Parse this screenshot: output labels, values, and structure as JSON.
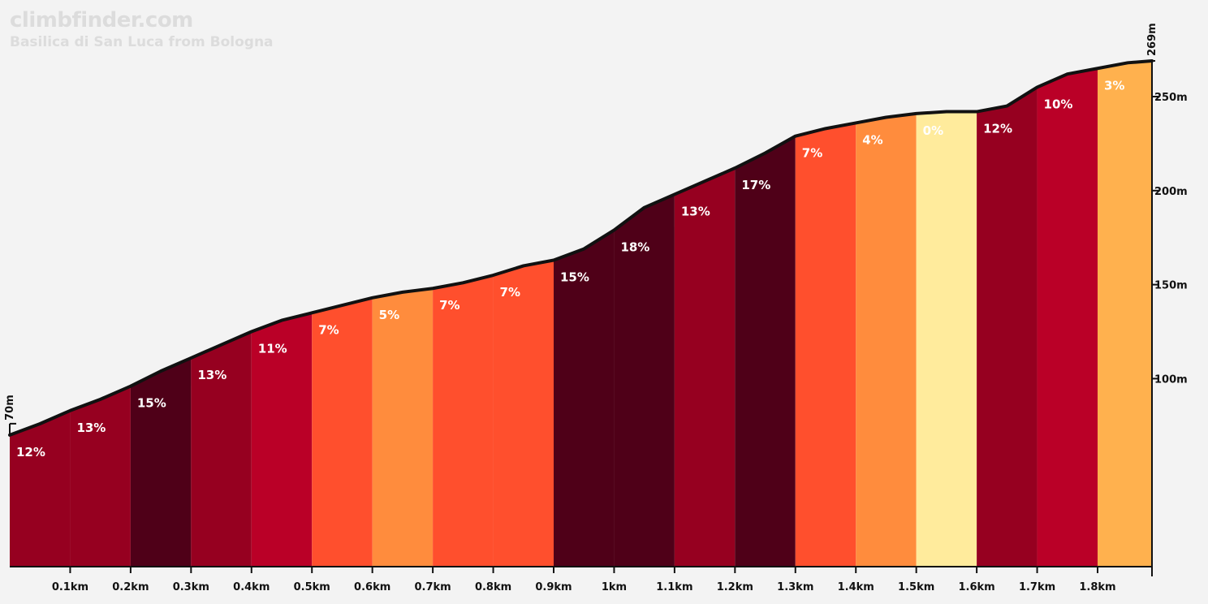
{
  "brand": "climbfinder.com",
  "chart_data": {
    "type": "area",
    "title": "Basilica di San Luca from Bologna",
    "xlabel": "",
    "ylabel": "",
    "x_unit": "km",
    "y_unit": "m",
    "xlim": [
      0,
      1.89
    ],
    "ylim": [
      0,
      269
    ],
    "start_elevation_label": "70m",
    "end_elevation_label": "269m",
    "x_ticks": [
      {
        "value": 0.1,
        "label": "0.1km"
      },
      {
        "value": 0.2,
        "label": "0.2km"
      },
      {
        "value": 0.3,
        "label": "0.3km"
      },
      {
        "value": 0.4,
        "label": "0.4km"
      },
      {
        "value": 0.5,
        "label": "0.5km"
      },
      {
        "value": 0.6,
        "label": "0.6km"
      },
      {
        "value": 0.7,
        "label": "0.7km"
      },
      {
        "value": 0.8,
        "label": "0.8km"
      },
      {
        "value": 0.9,
        "label": "0.9km"
      },
      {
        "value": 1.0,
        "label": "1km"
      },
      {
        "value": 1.1,
        "label": "1.1km"
      },
      {
        "value": 1.2,
        "label": "1.2km"
      },
      {
        "value": 1.3,
        "label": "1.3km"
      },
      {
        "value": 1.4,
        "label": "1.4km"
      },
      {
        "value": 1.5,
        "label": "1.5km"
      },
      {
        "value": 1.6,
        "label": "1.6km"
      },
      {
        "value": 1.7,
        "label": "1.7km"
      },
      {
        "value": 1.8,
        "label": "1.8km"
      }
    ],
    "y_ticks": [
      {
        "value": 100,
        "label": "100m"
      },
      {
        "value": 150,
        "label": "150m"
      },
      {
        "value": 200,
        "label": "200m"
      },
      {
        "value": 250,
        "label": "250m"
      }
    ],
    "profile": [
      {
        "x": 0.0,
        "y": 70
      },
      {
        "x": 0.05,
        "y": 76
      },
      {
        "x": 0.1,
        "y": 83
      },
      {
        "x": 0.15,
        "y": 89
      },
      {
        "x": 0.2,
        "y": 96
      },
      {
        "x": 0.25,
        "y": 104
      },
      {
        "x": 0.3,
        "y": 111
      },
      {
        "x": 0.35,
        "y": 118
      },
      {
        "x": 0.4,
        "y": 125
      },
      {
        "x": 0.45,
        "y": 131
      },
      {
        "x": 0.5,
        "y": 135
      },
      {
        "x": 0.55,
        "y": 139
      },
      {
        "x": 0.6,
        "y": 143
      },
      {
        "x": 0.65,
        "y": 146
      },
      {
        "x": 0.7,
        "y": 148
      },
      {
        "x": 0.75,
        "y": 151
      },
      {
        "x": 0.8,
        "y": 155
      },
      {
        "x": 0.85,
        "y": 160
      },
      {
        "x": 0.9,
        "y": 163
      },
      {
        "x": 0.95,
        "y": 169
      },
      {
        "x": 1.0,
        "y": 179
      },
      {
        "x": 1.05,
        "y": 191
      },
      {
        "x": 1.1,
        "y": 198
      },
      {
        "x": 1.15,
        "y": 205
      },
      {
        "x": 1.2,
        "y": 212
      },
      {
        "x": 1.25,
        "y": 220
      },
      {
        "x": 1.3,
        "y": 229
      },
      {
        "x": 1.35,
        "y": 233
      },
      {
        "x": 1.4,
        "y": 236
      },
      {
        "x": 1.45,
        "y": 239
      },
      {
        "x": 1.5,
        "y": 241
      },
      {
        "x": 1.55,
        "y": 242
      },
      {
        "x": 1.6,
        "y": 242
      },
      {
        "x": 1.65,
        "y": 245
      },
      {
        "x": 1.7,
        "y": 255
      },
      {
        "x": 1.75,
        "y": 262
      },
      {
        "x": 1.8,
        "y": 265
      },
      {
        "x": 1.85,
        "y": 268
      },
      {
        "x": 1.89,
        "y": 269
      }
    ],
    "segments": [
      {
        "start": 0.0,
        "end": 0.1,
        "grade": "12%",
        "color": "#960020"
      },
      {
        "start": 0.1,
        "end": 0.2,
        "grade": "13%",
        "color": "#960020"
      },
      {
        "start": 0.2,
        "end": 0.3,
        "grade": "15%",
        "color": "#4f0018"
      },
      {
        "start": 0.3,
        "end": 0.4,
        "grade": "13%",
        "color": "#960020"
      },
      {
        "start": 0.4,
        "end": 0.5,
        "grade": "11%",
        "color": "#ba0027"
      },
      {
        "start": 0.5,
        "end": 0.6,
        "grade": "7%",
        "color": "#ff4f2d"
      },
      {
        "start": 0.6,
        "end": 0.7,
        "grade": "5%",
        "color": "#ff8c3d"
      },
      {
        "start": 0.7,
        "end": 0.8,
        "grade": "7%",
        "color": "#ff4f2d"
      },
      {
        "start": 0.8,
        "end": 0.9,
        "grade": "7%",
        "color": "#ff4f2d"
      },
      {
        "start": 0.9,
        "end": 1.0,
        "grade": "15%",
        "color": "#4f0018"
      },
      {
        "start": 1.0,
        "end": 1.1,
        "grade": "18%",
        "color": "#4f0018"
      },
      {
        "start": 1.1,
        "end": 1.2,
        "grade": "13%",
        "color": "#960020"
      },
      {
        "start": 1.2,
        "end": 1.3,
        "grade": "17%",
        "color": "#4f0018"
      },
      {
        "start": 1.3,
        "end": 1.4,
        "grade": "7%",
        "color": "#ff4f2d"
      },
      {
        "start": 1.4,
        "end": 1.5,
        "grade": "4%",
        "color": "#ff8c3d"
      },
      {
        "start": 1.5,
        "end": 1.6,
        "grade": "0%",
        "color": "#ffeb9c"
      },
      {
        "start": 1.6,
        "end": 1.7,
        "grade": "12%",
        "color": "#960020"
      },
      {
        "start": 1.7,
        "end": 1.8,
        "grade": "10%",
        "color": "#ba0027"
      },
      {
        "start": 1.8,
        "end": 1.89,
        "grade": "3%",
        "color": "#ffb14e"
      }
    ]
  }
}
